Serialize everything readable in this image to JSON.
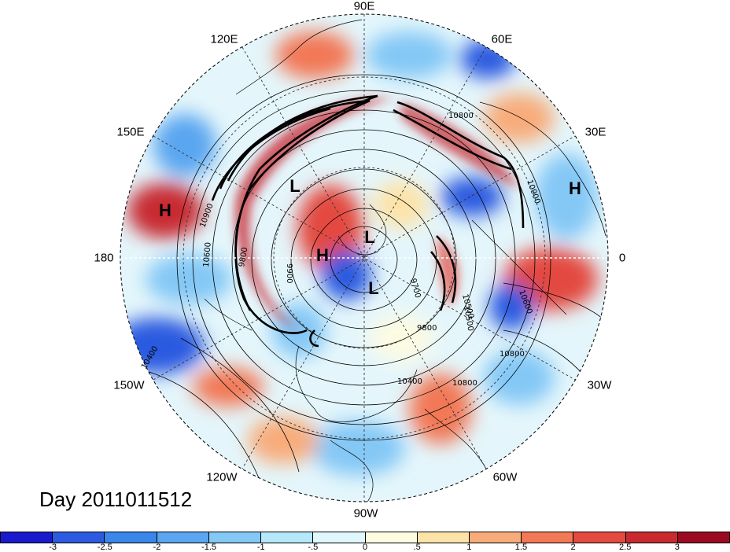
{
  "title": "Day 2011011512",
  "longitude_labels": [
    "90E",
    "60E",
    "30E",
    "0",
    "30W",
    "60W",
    "90W",
    "120W",
    "150W",
    "180",
    "150E",
    "120E"
  ],
  "centers": [
    "L",
    "L",
    "L",
    "H",
    "H",
    "H"
  ],
  "contour_labels": [
    "10800",
    "10900",
    "10500",
    "10400",
    "9800",
    "9700",
    "10600",
    "9900",
    "9800",
    "10900",
    "10800",
    "10800",
    "10400",
    "10500",
    "10600"
  ],
  "colorbar": {
    "ticks": [
      "-3",
      "-2.5",
      "-2",
      "-1.5",
      "-1",
      "-.5",
      "0",
      ".5",
      "1",
      "1.5",
      "2",
      "2.5",
      "3"
    ],
    "colors": [
      "#1a1acd",
      "#2c5ae0",
      "#3a86ea",
      "#5aa6f0",
      "#84c8f6",
      "#b4e8fa",
      "#e0f8fc",
      "#fdfbe2",
      "#fde3a8",
      "#f8ac7a",
      "#f27856",
      "#e34a40",
      "#c82a30",
      "#9c0a22"
    ]
  }
}
